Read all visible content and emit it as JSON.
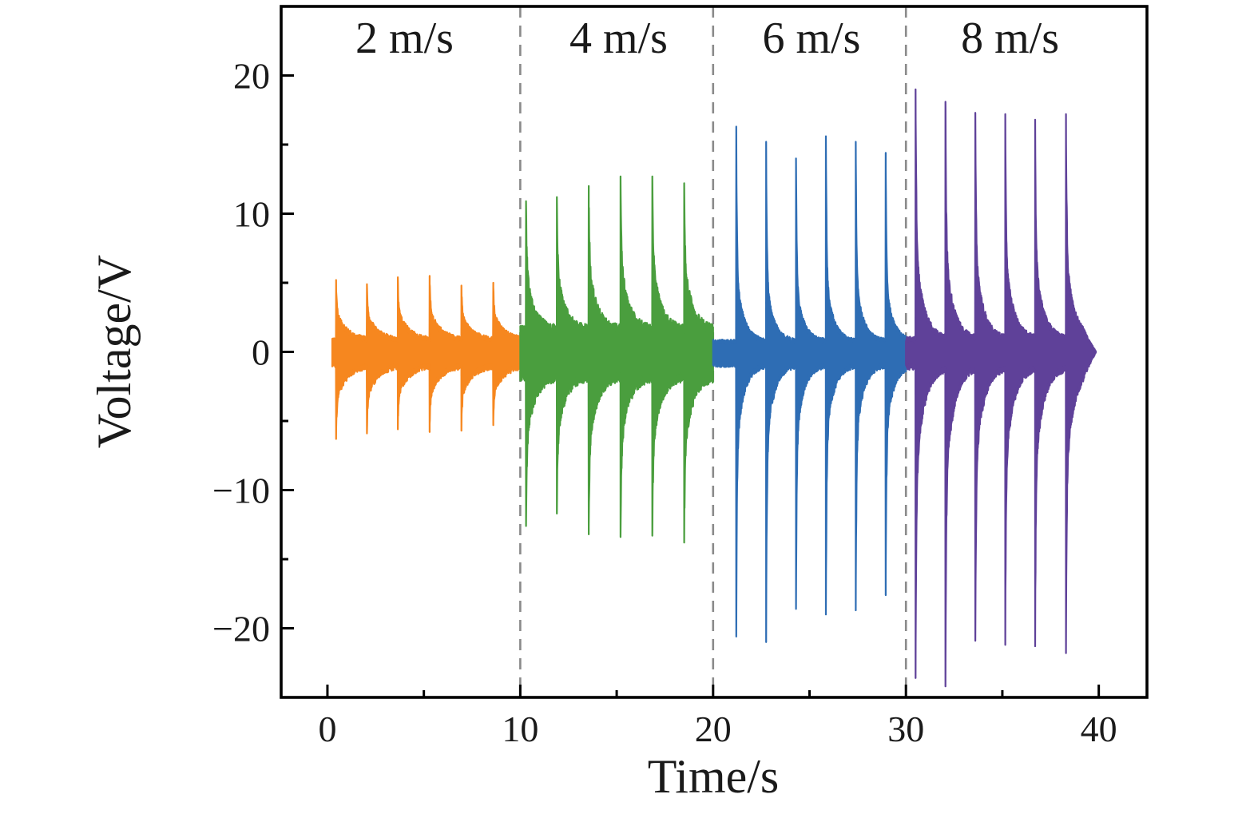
{
  "figure": {
    "background": "#ffffff",
    "frame_color": "#000000",
    "separator_color": "#8a8a8a",
    "text_color": "#1a1a1a"
  },
  "axes": {
    "xlabel": "Time/s",
    "ylabel": "Voltage/V",
    "x_ticks": [
      {
        "v": 0,
        "label": "0"
      },
      {
        "v": 10,
        "label": "10"
      },
      {
        "v": 20,
        "label": "20"
      },
      {
        "v": 30,
        "label": "30"
      },
      {
        "v": 40,
        "label": "40"
      }
    ],
    "x_minor_ticks": [
      5,
      15,
      25,
      35
    ],
    "y_ticks": [
      {
        "v": 20,
        "label": "20"
      },
      {
        "v": 10,
        "label": "10"
      },
      {
        "v": 0,
        "label": "0"
      },
      {
        "v": -10,
        "label": "−10"
      },
      {
        "v": -20,
        "label": "−20"
      }
    ],
    "y_minor_ticks": [
      15,
      5,
      -5,
      -15
    ],
    "xlim": [
      -2.4,
      42.5
    ],
    "ylim": [
      -25,
      25
    ]
  },
  "chart_data": {
    "type": "line",
    "title": "",
    "xlabel": "Time/s",
    "ylabel": "Voltage/V",
    "xlim": [
      -2.4,
      42.5
    ],
    "ylim": [
      -25,
      25
    ],
    "grid": false,
    "legend": "none",
    "separators_x": [
      10,
      20,
      30
    ],
    "annotations": [
      {
        "text": "2 m/s",
        "x": 4.0,
        "y": 22.8
      },
      {
        "text": "4 m/s",
        "x": 15.1,
        "y": 22.8
      },
      {
        "text": "6 m/s",
        "x": 25.1,
        "y": 22.8
      },
      {
        "text": "8 m/s",
        "x": 35.4,
        "y": 22.8
      }
    ],
    "series": [
      {
        "name": "2 m/s",
        "color": "#F6871F",
        "seed": 11,
        "t_start": 0.25,
        "t_end": 10.0,
        "noise_pos": 1.0,
        "noise_neg": 1.15,
        "needle_frac": 0.5,
        "needle_tau": 0.04,
        "shoulder_tau": 0.55,
        "bursts": [
          {
            "t": 0.45,
            "peak": 5.2,
            "trough": -6.3
          },
          {
            "t": 2.05,
            "peak": 4.9,
            "trough": -5.9
          },
          {
            "t": 3.65,
            "peak": 5.4,
            "trough": -5.6
          },
          {
            "t": 5.3,
            "peak": 5.5,
            "trough": -5.8
          },
          {
            "t": 6.95,
            "peak": 4.8,
            "trough": -5.7
          },
          {
            "t": 8.6,
            "peak": 5.0,
            "trough": -5.3
          }
        ]
      },
      {
        "name": "4 m/s",
        "color": "#4A9E3E",
        "seed": 23,
        "t_start": 10.0,
        "t_end": 20.0,
        "noise_pos": 1.9,
        "noise_neg": 2.1,
        "needle_frac": 0.52,
        "needle_tau": 0.045,
        "shoulder_tau": 0.42,
        "bursts": [
          {
            "t": 10.3,
            "peak": 10.9,
            "trough": -12.6
          },
          {
            "t": 11.9,
            "peak": 11.2,
            "trough": -11.7
          },
          {
            "t": 13.55,
            "peak": 12.0,
            "trough": -13.2
          },
          {
            "t": 15.2,
            "peak": 12.7,
            "trough": -13.4
          },
          {
            "t": 16.85,
            "peak": 12.7,
            "trough": -13.3
          },
          {
            "t": 18.5,
            "peak": 12.2,
            "trough": -13.8
          }
        ]
      },
      {
        "name": "6 m/s",
        "color": "#2E6DB4",
        "seed": 37,
        "t_start": 20.0,
        "t_end": 30.0,
        "noise_pos": 0.9,
        "noise_neg": 1.1,
        "needle_frac": 0.68,
        "needle_tau": 0.04,
        "shoulder_tau": 0.38,
        "bursts": [
          {
            "t": 21.2,
            "peak": 16.3,
            "trough": -20.6
          },
          {
            "t": 22.75,
            "peak": 15.2,
            "trough": -21.0
          },
          {
            "t": 24.3,
            "peak": 14.0,
            "trough": -18.6
          },
          {
            "t": 25.85,
            "peak": 15.6,
            "trough": -19.0
          },
          {
            "t": 27.4,
            "peak": 15.2,
            "trough": -18.7
          },
          {
            "t": 28.95,
            "peak": 14.4,
            "trough": -17.6
          }
        ]
      },
      {
        "name": "8 m/s",
        "color": "#5F4199",
        "seed": 51,
        "t_start": 30.0,
        "t_end": 39.85,
        "taper_start": 39.2,
        "noise_pos": 1.1,
        "noise_neg": 1.3,
        "needle_frac": 0.62,
        "needle_tau": 0.042,
        "shoulder_tau": 0.42,
        "bursts": [
          {
            "t": 30.5,
            "peak": 19.0,
            "trough": -23.6
          },
          {
            "t": 32.05,
            "peak": 18.1,
            "trough": -24.2
          },
          {
            "t": 33.6,
            "peak": 17.3,
            "trough": -20.9
          },
          {
            "t": 35.15,
            "peak": 17.2,
            "trough": -21.2
          },
          {
            "t": 36.7,
            "peak": 16.8,
            "trough": -21.3
          },
          {
            "t": 38.3,
            "peak": 17.2,
            "trough": -21.8
          }
        ]
      }
    ]
  }
}
